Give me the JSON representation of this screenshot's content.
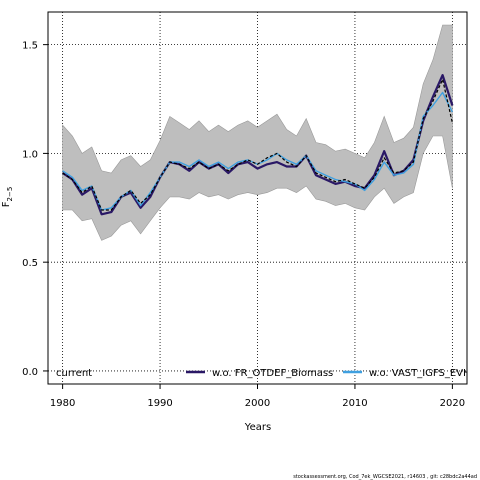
{
  "chart_data": {
    "type": "line",
    "title": "",
    "xlabel": "Years",
    "ylabel": "F",
    "ylabel_subscript": "2−5",
    "xlim": [
      1978.5,
      2021.5
    ],
    "ylim": [
      -0.06,
      1.65
    ],
    "xticks": [
      1980,
      1990,
      2000,
      2010,
      2020
    ],
    "yticks": [
      0.0,
      0.5,
      1.0,
      1.5
    ],
    "ytick_labels": [
      "0.0",
      "0.5",
      "1.0",
      "1.5"
    ],
    "grid": true,
    "legend_position": "bottom",
    "x": [
      1980,
      1981,
      1982,
      1983,
      1984,
      1985,
      1986,
      1987,
      1988,
      1989,
      1990,
      1991,
      1992,
      1993,
      1994,
      1995,
      1996,
      1997,
      1998,
      1999,
      2000,
      2001,
      2002,
      2003,
      2004,
      2005,
      2006,
      2007,
      2008,
      2009,
      2010,
      2011,
      2012,
      2013,
      2014,
      2015,
      2016,
      2017,
      2018,
      2019,
      2020
    ],
    "band": {
      "name": "current",
      "lower": [
        0.74,
        0.74,
        0.69,
        0.7,
        0.6,
        0.62,
        0.67,
        0.69,
        0.63,
        0.69,
        0.75,
        0.8,
        0.8,
        0.79,
        0.82,
        0.8,
        0.81,
        0.79,
        0.81,
        0.82,
        0.81,
        0.82,
        0.84,
        0.84,
        0.82,
        0.85,
        0.79,
        0.78,
        0.76,
        0.77,
        0.75,
        0.74,
        0.8,
        0.84,
        0.77,
        0.8,
        0.82,
        1.0,
        1.08,
        1.08,
        0.84
      ],
      "upper": [
        1.13,
        1.08,
        1.0,
        1.03,
        0.92,
        0.91,
        0.97,
        0.99,
        0.94,
        0.97,
        1.06,
        1.17,
        1.14,
        1.11,
        1.15,
        1.1,
        1.13,
        1.1,
        1.13,
        1.15,
        1.12,
        1.15,
        1.18,
        1.11,
        1.08,
        1.16,
        1.05,
        1.04,
        1.01,
        1.02,
        1.0,
        0.98,
        1.05,
        1.17,
        1.05,
        1.07,
        1.12,
        1.32,
        1.43,
        1.59,
        1.59
      ]
    },
    "series": [
      {
        "name": "current",
        "color": "#000000",
        "style": "dashed",
        "values": [
          0.91,
          0.88,
          0.82,
          0.85,
          0.74,
          0.74,
          0.8,
          0.83,
          0.77,
          0.81,
          0.89,
          0.96,
          0.95,
          0.93,
          0.96,
          0.93,
          0.95,
          0.92,
          0.95,
          0.97,
          0.95,
          0.98,
          1.0,
          0.96,
          0.94,
          0.99,
          0.91,
          0.89,
          0.87,
          0.88,
          0.86,
          0.84,
          0.89,
          0.98,
          0.91,
          0.92,
          0.96,
          1.16,
          1.24,
          1.34,
          1.14
        ]
      },
      {
        "name": "w.o. FR_OTDEF_Biomass",
        "color": "#2a1866",
        "style": "solid",
        "values": [
          0.91,
          0.88,
          0.81,
          0.84,
          0.72,
          0.73,
          0.8,
          0.82,
          0.75,
          0.8,
          0.89,
          0.96,
          0.95,
          0.92,
          0.96,
          0.93,
          0.95,
          0.91,
          0.95,
          0.96,
          0.93,
          0.95,
          0.96,
          0.94,
          0.94,
          0.99,
          0.9,
          0.88,
          0.86,
          0.87,
          0.85,
          0.84,
          0.9,
          1.01,
          0.9,
          0.92,
          0.97,
          1.15,
          1.26,
          1.36,
          1.22
        ]
      },
      {
        "name": "w.o. VAST_IGFS_EVHOE",
        "color": "#3fa0e0",
        "style": "solid",
        "values": [
          0.92,
          0.89,
          0.83,
          0.85,
          0.74,
          0.75,
          0.8,
          0.83,
          0.76,
          0.82,
          0.89,
          0.96,
          0.96,
          0.94,
          0.97,
          0.94,
          0.96,
          0.93,
          0.96,
          0.97,
          0.95,
          0.97,
          1.0,
          0.97,
          0.95,
          0.99,
          0.92,
          0.9,
          0.88,
          0.87,
          0.86,
          0.83,
          0.88,
          0.96,
          0.9,
          0.91,
          0.95,
          1.17,
          1.22,
          1.28,
          1.19
        ]
      }
    ],
    "legend": [
      {
        "label": "current",
        "color": "#000000"
      },
      {
        "label": "w.o. FR_OTDEF_Biomass",
        "color": "#2a1866"
      },
      {
        "label": "w.o. VAST_IGFS_EVHOE",
        "color": "#3fa0e0"
      }
    ],
    "band_color": "#bebebe"
  },
  "footer": "stockassessment.org, Cod_7ek_WGCSE2021, r14603 , git: c28bdc2a44ad"
}
